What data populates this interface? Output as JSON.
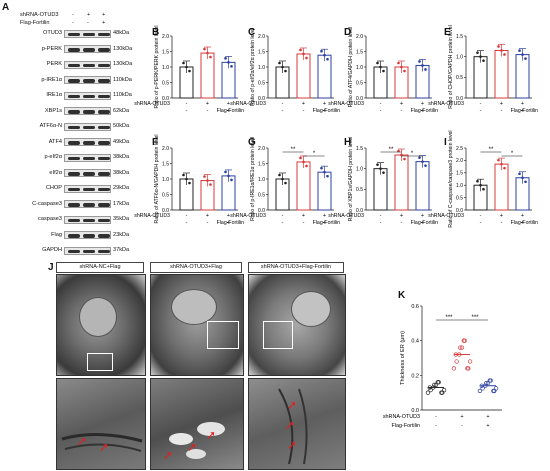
{
  "panel_letters": [
    "A",
    "B",
    "C",
    "D",
    "E",
    "F",
    "G",
    "H",
    "I",
    "J",
    "K"
  ],
  "wb": {
    "shRNA_label": "shRNA-OTUD3",
    "flag_label": "Flag-Fortilin",
    "shRNA_signs": [
      "-",
      "+",
      "+"
    ],
    "flag_signs": [
      "-",
      "-",
      "+"
    ],
    "bands": [
      {
        "name": "OTUD3",
        "kda": "48kDa"
      },
      {
        "name": "p-PERK",
        "kda": "130kDa"
      },
      {
        "name": "PERK",
        "kda": "130kDa"
      },
      {
        "name": "p-IRE1α",
        "kda": "110kDa"
      },
      {
        "name": "IRE1α",
        "kda": "110kDa"
      },
      {
        "name": "XBP1s",
        "kda": "62kDa"
      },
      {
        "name": "ATF6α-N",
        "kda": "50kDa"
      },
      {
        "name": "ATF4",
        "kda": "49kDa"
      },
      {
        "name": "p-eIf2α",
        "kda": "38kDa"
      },
      {
        "name": "eIf2α",
        "kda": "38kDa"
      },
      {
        "name": "CHOP",
        "kda": "29kDa"
      },
      {
        "name": "C-caspase3",
        "kda": "17kDa"
      },
      {
        "name": "caspase3",
        "kda": "35kDa"
      },
      {
        "name": "Flag",
        "kda": "23kDa"
      },
      {
        "name": "GAPDH",
        "kda": "37kDa"
      }
    ]
  },
  "colors": {
    "control": "#222222",
    "shRNA": "#d93a3a",
    "fortilin": "#2b3fa0"
  },
  "chart_data": [
    {
      "panel": "B",
      "type": "bar",
      "ylabel": "Ratio of p-PERK/PERK protein level",
      "ylim": [
        0,
        2.0
      ],
      "ticks": [
        "0.0",
        "0.5",
        "1.0",
        "1.5",
        "2.0"
      ],
      "values": [
        1.0,
        1.45,
        1.15
      ],
      "sig": []
    },
    {
      "panel": "C",
      "type": "bar",
      "ylabel": "Ratio of p-eIf2α/eIf2α protein level",
      "ylim": [
        0,
        2.0
      ],
      "ticks": [
        "0.0",
        "0.5",
        "1.0",
        "1.5",
        "2.0"
      ],
      "values": [
        1.0,
        1.42,
        1.38
      ],
      "sig": []
    },
    {
      "panel": "D",
      "type": "bar",
      "ylabel": "Ratio of ATF4/GAPDH protein level",
      "ylim": [
        0,
        2.0
      ],
      "ticks": [
        "0.0",
        "0.5",
        "1.0",
        "1.5",
        "2.0"
      ],
      "values": [
        1.0,
        1.0,
        1.05
      ],
      "sig": []
    },
    {
      "panel": "E",
      "type": "bar",
      "ylabel": "Ratio of CHOP/GAPDH protein level",
      "ylim": [
        0,
        1.5
      ],
      "ticks": [
        "0.0",
        "0.5",
        "1.0",
        "1.5"
      ],
      "values": [
        1.0,
        1.15,
        1.05
      ],
      "sig": []
    },
    {
      "panel": "F",
      "type": "bar",
      "ylabel": "Ratio of ATF6α-N/GAPDH protein level",
      "ylim": [
        0,
        2.0
      ],
      "ticks": [
        "0.0",
        "0.5",
        "1.0",
        "1.5",
        "2.0"
      ],
      "values": [
        1.0,
        0.95,
        1.1
      ],
      "sig": []
    },
    {
      "panel": "G",
      "type": "bar",
      "ylabel": "Ratio of p-IRE1α/IRE1α protein level",
      "ylim": [
        0,
        2.0
      ],
      "ticks": [
        "0.0",
        "0.5",
        "1.0",
        "1.5",
        "2.0"
      ],
      "values": [
        1.0,
        1.55,
        1.22
      ],
      "sig": [
        "**",
        "*"
      ]
    },
    {
      "panel": "H",
      "type": "bar",
      "ylabel": "Ratio of XBP1s/GAPDH protein level",
      "ylim": [
        0,
        1.5
      ],
      "ticks": [
        "0.0",
        "0.5",
        "1.0",
        "1.5"
      ],
      "values": [
        1.0,
        1.33,
        1.17
      ],
      "sig": [
        "**",
        "*"
      ]
    },
    {
      "panel": "I",
      "type": "bar",
      "ylabel": "Ratio of C-caspase/caspase3 protein level",
      "ylim": [
        0,
        2.5
      ],
      "ticks": [
        "0.0",
        "0.5",
        "1.0",
        "1.5",
        "2.0",
        "2.5"
      ],
      "values": [
        1.0,
        1.85,
        1.3
      ],
      "sig": [
        "**",
        "*"
      ]
    },
    {
      "panel": "K",
      "type": "scatter",
      "ylabel": "Thickness of ER (μm)",
      "ylim": [
        0,
        0.6
      ],
      "ticks": [
        "0.0",
        "0.2",
        "0.4",
        "0.6"
      ],
      "means": [
        0.13,
        0.32,
        0.14
      ],
      "sig": [
        "***",
        "***"
      ]
    }
  ],
  "micro": {
    "titles": [
      "shRNA-NC+Flag",
      "shRNA-OTUD3+Flag",
      "shRNA-OTUD3+Flag-Fortilin"
    ]
  }
}
